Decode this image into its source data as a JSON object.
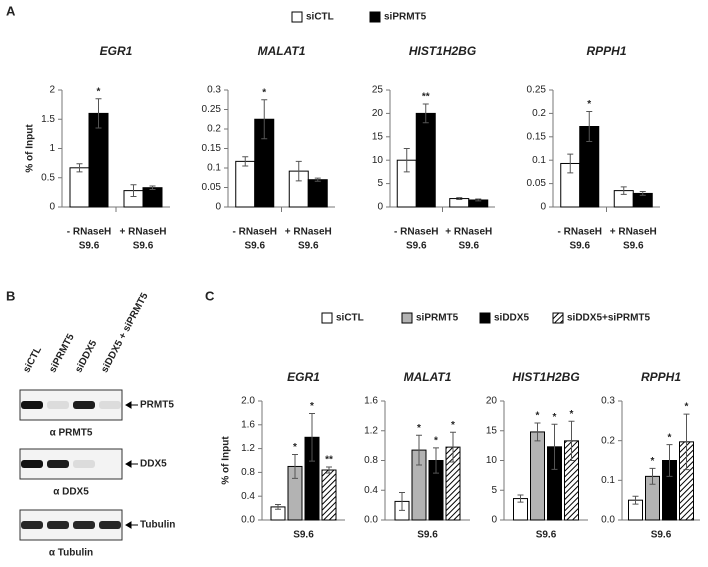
{
  "panel_labels": [
    "A",
    "B",
    "C"
  ],
  "blot": {
    "lanes": [
      "siCTL",
      "siPRMT5",
      "siDDX5",
      "siDDX5 + siPRMT5"
    ],
    "rows": [
      {
        "band": "PRMT5",
        "antibody": "α PRMT5"
      },
      {
        "band": "DDX5",
        "antibody": "α DDX5"
      },
      {
        "band": "Tubulin",
        "antibody": "α Tubulin"
      }
    ]
  },
  "chart_data": [
    {
      "type": "bar",
      "series": [
        {
          "name": "siCTL",
          "color": "#ffffff"
        },
        {
          "name": "siPRMT5",
          "color": "#000000"
        }
      ],
      "charts": [
        {
          "title": "EGR1",
          "ylabel": "% of Input",
          "categories": [
            "- RNaseH",
            "+ RNaseH"
          ],
          "category_sublabels": [
            "S9.6",
            "S9.6"
          ],
          "ylim": [
            0,
            2
          ],
          "yticks": [
            0,
            0.5,
            1,
            1.5,
            2
          ],
          "series": [
            {
              "values": [
                0.67,
                0.28
              ],
              "errors": [
                0.07,
                0.1
              ],
              "stars": [
                null,
                null
              ]
            },
            {
              "values": [
                1.6,
                0.33
              ],
              "errors": [
                0.25,
                0.03
              ],
              "stars": [
                "*",
                null
              ]
            }
          ]
        },
        {
          "title": "MALAT1",
          "categories": [
            "- RNaseH",
            "+ RNaseH"
          ],
          "category_sublabels": [
            "S9.6",
            "S9.6"
          ],
          "ylim": [
            0,
            0.3
          ],
          "yticks": [
            0,
            0.05,
            0.1,
            0.15,
            0.2,
            0.25,
            0.3
          ],
          "series": [
            {
              "values": [
                0.117,
                0.092
              ],
              "errors": [
                0.012,
                0.025
              ],
              "stars": [
                null,
                null
              ]
            },
            {
              "values": [
                0.225,
                0.07
              ],
              "errors": [
                0.05,
                0.004
              ],
              "stars": [
                "*",
                null
              ]
            }
          ]
        },
        {
          "title": "HIST1H2BG",
          "categories": [
            "- RNaseH",
            "+ RNaseH"
          ],
          "category_sublabels": [
            "S9.6",
            "S9.6"
          ],
          "ylim": [
            0,
            25
          ],
          "yticks": [
            0,
            5,
            10,
            15,
            20,
            25
          ],
          "series": [
            {
              "values": [
                10,
                1.8
              ],
              "errors": [
                2.5,
                0.2
              ],
              "stars": [
                null,
                null
              ]
            },
            {
              "values": [
                20,
                1.5
              ],
              "errors": [
                2,
                0.2
              ],
              "stars": [
                "**",
                null
              ]
            }
          ]
        },
        {
          "title": "RPPH1",
          "categories": [
            "- RNaseH",
            "+ RNaseH"
          ],
          "category_sublabels": [
            "S9.6",
            "S9.6"
          ],
          "ylim": [
            0,
            0.25
          ],
          "yticks": [
            0,
            0.05,
            0.1,
            0.15,
            0.2,
            0.25
          ],
          "series": [
            {
              "values": [
                0.093,
                0.035
              ],
              "errors": [
                0.02,
                0.008
              ],
              "stars": [
                null,
                null
              ]
            },
            {
              "values": [
                0.172,
                0.029
              ],
              "errors": [
                0.032,
                0.004
              ],
              "stars": [
                "*",
                null
              ]
            }
          ]
        }
      ]
    },
    {
      "type": "bar",
      "series": [
        {
          "name": "siCTL",
          "color": "#ffffff"
        },
        {
          "name": "siPRMT5",
          "color": "#b3b3b3"
        },
        {
          "name": "siDDX5",
          "color": "#000000"
        },
        {
          "name": "siDDX5+siPRMT5",
          "color": "#000000",
          "pattern": "hatch"
        }
      ],
      "charts": [
        {
          "title": "EGR1",
          "ylabel": "% of Input",
          "categories": [
            "S9.6"
          ],
          "ylim": [
            0,
            2
          ],
          "yticks": [
            {
              "value": 0,
              "label": "0.0"
            },
            0.4,
            0.8,
            1.2,
            1.6,
            {
              "value": 2,
              "label": "2.0"
            }
          ],
          "series": [
            {
              "values": [
                0.22
              ],
              "errors": [
                0.04
              ],
              "stars": [
                null
              ]
            },
            {
              "values": [
                0.9
              ],
              "errors": [
                0.2
              ],
              "stars": [
                "*"
              ]
            },
            {
              "values": [
                1.39
              ],
              "errors": [
                0.4
              ],
              "stars": [
                "*"
              ]
            },
            {
              "values": [
                0.84
              ],
              "errors": [
                0.05
              ],
              "stars": [
                "**"
              ]
            }
          ]
        },
        {
          "title": "MALAT1",
          "categories": [
            "S9.6"
          ],
          "ylim": [
            0,
            1.6
          ],
          "yticks": [
            {
              "value": 0,
              "label": "0.0"
            },
            0.4,
            0.8,
            1.2,
            1.6
          ],
          "series": [
            {
              "values": [
                0.25
              ],
              "errors": [
                0.12
              ],
              "stars": [
                null
              ]
            },
            {
              "values": [
                0.94
              ],
              "errors": [
                0.2
              ],
              "stars": [
                "*"
              ]
            },
            {
              "values": [
                0.8
              ],
              "errors": [
                0.17
              ],
              "stars": [
                "*"
              ]
            },
            {
              "values": [
                0.98
              ],
              "errors": [
                0.2
              ],
              "stars": [
                "*"
              ]
            }
          ]
        },
        {
          "title": "HIST1H2BG",
          "categories": [
            "S9.6"
          ],
          "ylim": [
            0,
            20
          ],
          "yticks": [
            0,
            5,
            10,
            15,
            20
          ],
          "series": [
            {
              "values": [
                3.6
              ],
              "errors": [
                0.6
              ],
              "stars": [
                null
              ]
            },
            {
              "values": [
                14.8
              ],
              "errors": [
                1.5
              ],
              "stars": [
                "*"
              ]
            },
            {
              "values": [
                12.3
              ],
              "errors": [
                3.8
              ],
              "stars": [
                "*"
              ]
            },
            {
              "values": [
                13.3
              ],
              "errors": [
                3.3
              ],
              "stars": [
                "*"
              ]
            }
          ]
        },
        {
          "title": "RPPH1",
          "categories": [
            "S9.6"
          ],
          "ylim": [
            0,
            0.3
          ],
          "yticks": [
            {
              "value": 0,
              "label": "0.0"
            },
            0.1,
            0.2,
            0.3
          ],
          "series": [
            {
              "values": [
                0.05
              ],
              "errors": [
                0.01
              ],
              "stars": [
                null
              ]
            },
            {
              "values": [
                0.11
              ],
              "errors": [
                0.02
              ],
              "stars": [
                "*"
              ]
            },
            {
              "values": [
                0.15
              ],
              "errors": [
                0.04
              ],
              "stars": [
                "*"
              ]
            },
            {
              "values": [
                0.197
              ],
              "errors": [
                0.07
              ],
              "stars": [
                "*"
              ]
            }
          ]
        }
      ]
    }
  ]
}
